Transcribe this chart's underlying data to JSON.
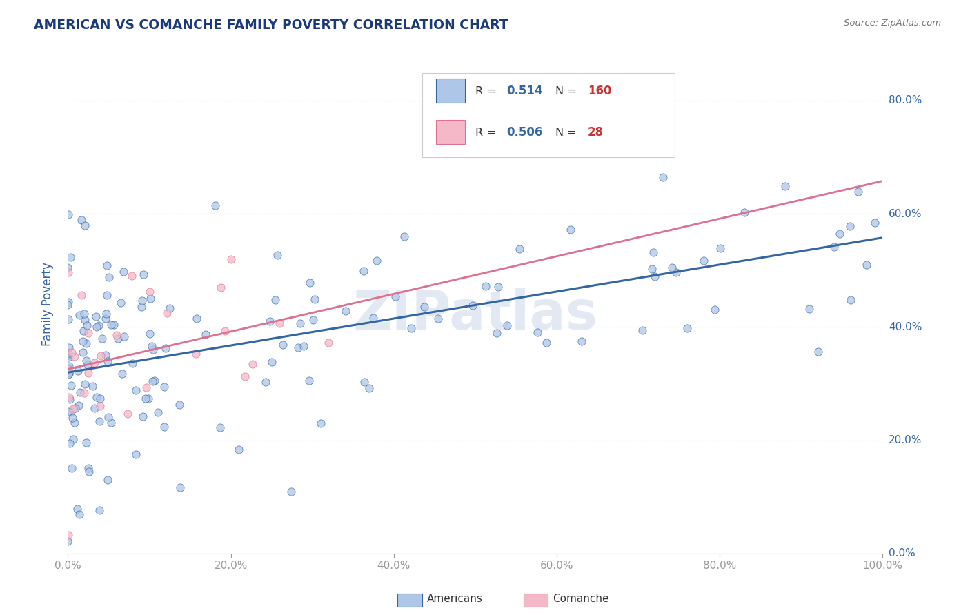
{
  "title": "AMERICAN VS COMANCHE FAMILY POVERTY CORRELATION CHART",
  "source": "Source: ZipAtlas.com",
  "ylabel": "Family Poverty",
  "watermark": "ZIPatlas",
  "legend_americans": "Americans",
  "legend_comanche": "Comanche",
  "r_americans": 0.514,
  "n_americans": 160,
  "r_comanche": 0.506,
  "n_comanche": 28,
  "color_americans_fill": "#aec6e8",
  "color_comanche_fill": "#f4b8c8",
  "color_americans_line": "#3465a4",
  "color_comanche_line": "#e07090",
  "color_dashed": "#ccaaaa",
  "background_color": "#ffffff",
  "grid_color": "#c8d4e8",
  "title_color": "#1a3a7a",
  "axis_label_color": "#3465a4",
  "legend_r_color": "#3465a4",
  "legend_n_color": "#cc3333",
  "xlim": [
    0,
    1.0
  ],
  "ylim": [
    0,
    0.88
  ],
  "xtick_positions": [
    0.0,
    0.2,
    0.4,
    0.6,
    0.8,
    1.0
  ],
  "xtick_labels": [
    "0.0%",
    "20.0%",
    "40.0%",
    "60.0%",
    "80.0%",
    "100.0%"
  ],
  "ytick_positions": [
    0.0,
    0.2,
    0.4,
    0.6,
    0.8
  ],
  "ytick_labels": [
    "0.0%",
    "20.0%",
    "40.0%",
    "60.0%",
    "80.0%"
  ]
}
